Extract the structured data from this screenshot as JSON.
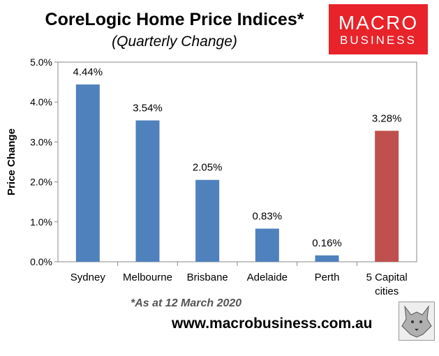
{
  "title": "CoreLogic Home Price Indices*",
  "subtitle": "(Quarterly Change)",
  "logo": {
    "line1": "MACRO",
    "line2": "BUSINESS"
  },
  "footnote": "*As at 12 March 2020",
  "website": "www.macrobusiness.com.au",
  "colors": {
    "bar": "#4f81bd",
    "highlight": "#c0504d",
    "logo_bg": "#e8232a"
  },
  "chart_data": {
    "type": "bar",
    "title": "CoreLogic Home Price Indices*",
    "subtitle": "(Quarterly Change)",
    "ylabel": "Price Change",
    "xlabel": "",
    "ylim": [
      0,
      5
    ],
    "yticks": [
      "0.0%",
      "1.0%",
      "2.0%",
      "3.0%",
      "4.0%",
      "5.0%"
    ],
    "categories": [
      [
        "Sydney"
      ],
      [
        "Melbourne"
      ],
      [
        "Brisbane"
      ],
      [
        "Adelaide"
      ],
      [
        "Perth"
      ],
      [
        "5 Capital",
        "cities"
      ]
    ],
    "values": [
      4.44,
      3.54,
      2.05,
      0.83,
      0.16,
      3.28
    ],
    "data_labels": [
      "4.44%",
      "3.54%",
      "2.05%",
      "0.83%",
      "0.16%",
      "3.28%"
    ],
    "highlight_index": 5,
    "grid": false,
    "legend": "none"
  }
}
